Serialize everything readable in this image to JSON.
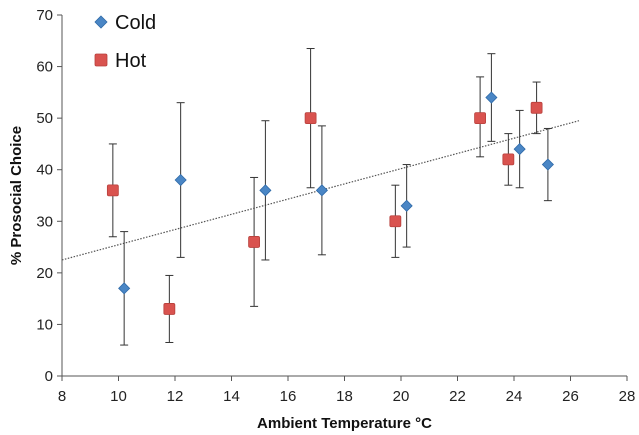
{
  "chart_data": {
    "type": "scatter",
    "xlabel": "Ambient Temperature °C",
    "ylabel": "% Prosocial Choice",
    "xlim": [
      8,
      28
    ],
    "ylim": [
      0,
      70
    ],
    "xticks": [
      8,
      10,
      12,
      14,
      16,
      18,
      20,
      22,
      24,
      26,
      28
    ],
    "yticks": [
      0,
      10,
      20,
      30,
      40,
      50,
      60,
      70
    ],
    "grid": false,
    "legend_position": "top-left",
    "series": [
      {
        "name": "Cold",
        "marker": "diamond",
        "color": "#4a86c5",
        "points": [
          {
            "x": 10.2,
            "y": 17,
            "low": 6,
            "high": 28
          },
          {
            "x": 12.2,
            "y": 38,
            "low": 23,
            "high": 53
          },
          {
            "x": 15.2,
            "y": 36,
            "low": 22.5,
            "high": 49.5
          },
          {
            "x": 17.2,
            "y": 36,
            "low": 23.5,
            "high": 48.5
          },
          {
            "x": 20.2,
            "y": 33,
            "low": 25,
            "high": 41
          },
          {
            "x": 23.2,
            "y": 54,
            "low": 45.5,
            "high": 62.5
          },
          {
            "x": 24.2,
            "y": 44,
            "low": 36.5,
            "high": 51.5
          },
          {
            "x": 25.2,
            "y": 41,
            "low": 34,
            "high": 48
          }
        ]
      },
      {
        "name": "Hot",
        "marker": "square",
        "color": "#d9534f",
        "points": [
          {
            "x": 9.8,
            "y": 36,
            "low": 27,
            "high": 45
          },
          {
            "x": 11.8,
            "y": 13,
            "low": 6.5,
            "high": 19.5
          },
          {
            "x": 14.8,
            "y": 26,
            "low": 13.5,
            "high": 38.5
          },
          {
            "x": 16.8,
            "y": 50,
            "low": 36.5,
            "high": 63.5
          },
          {
            "x": 19.8,
            "y": 30,
            "low": 23,
            "high": 37
          },
          {
            "x": 22.8,
            "y": 50,
            "low": 42.5,
            "high": 58
          },
          {
            "x": 23.8,
            "y": 42,
            "low": 37,
            "high": 47
          },
          {
            "x": 24.8,
            "y": 52,
            "low": 47,
            "high": 57
          }
        ]
      }
    ],
    "trendline": {
      "x": [
        8,
        26.3
      ],
      "y": [
        22.5,
        49.5
      ],
      "style": "dotted",
      "color": "#555555"
    }
  }
}
